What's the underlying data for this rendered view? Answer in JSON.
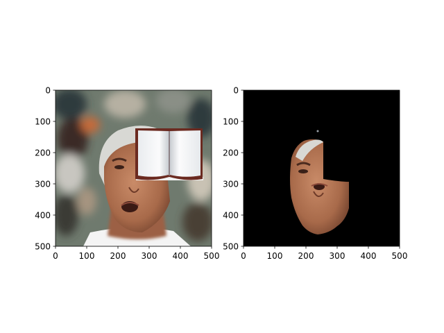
{
  "chart_data": [
    {
      "type": "image",
      "content": "photo of a man's face with a white book overlay covering the upper-right part of the face",
      "xlim": [
        0,
        500
      ],
      "ylim": [
        500,
        0
      ],
      "xticks": [
        "0",
        "100",
        "200",
        "300",
        "400",
        "500"
      ],
      "yticks": [
        "0",
        "100",
        "200",
        "300",
        "400",
        "500"
      ]
    },
    {
      "type": "image",
      "content": "segmented face on black background, region covered by the book removed",
      "xlim": [
        0,
        500
      ],
      "ylim": [
        500,
        0
      ],
      "xticks": [
        "0",
        "100",
        "200",
        "300",
        "400",
        "500"
      ],
      "yticks": [
        "0",
        "100",
        "200",
        "300",
        "400",
        "500"
      ]
    }
  ],
  "colors": {
    "background_blur": "#6f7a6e",
    "crowd_dark": "#2f3a3c",
    "crowd_light": "#b6b0a2",
    "skin": "#b97a5a",
    "skin_shadow": "#8a5236",
    "cap": "#d8d8d4",
    "shirt": "#f4f4f4",
    "book_page": "#f3f4f6",
    "book_cover": "#6b2a20",
    "mask_bg": "#000000"
  }
}
